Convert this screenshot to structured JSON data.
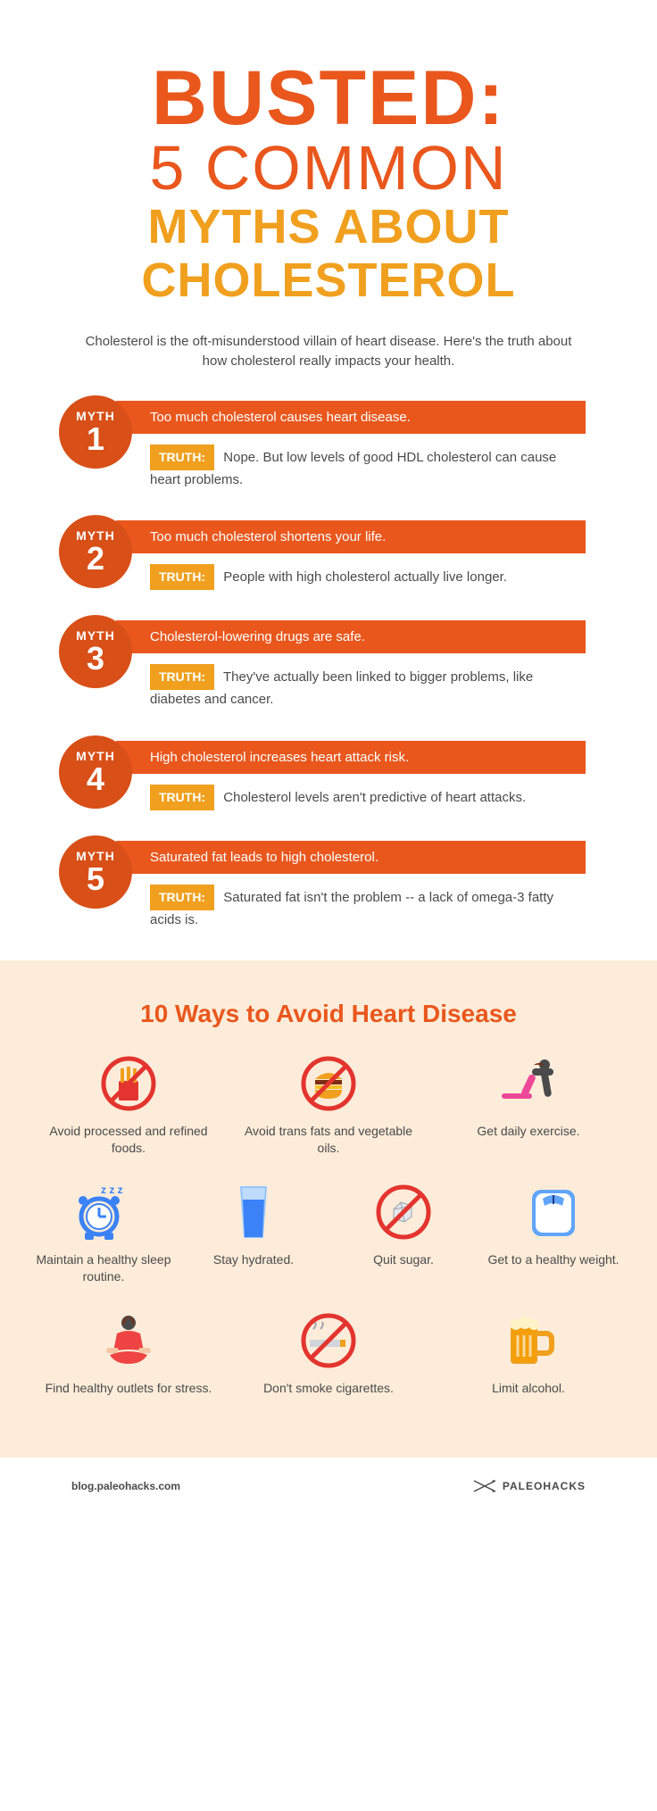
{
  "colors": {
    "orange": "#e9571d",
    "orangeDark": "#d84f18",
    "amber": "#f0a01e",
    "cream": "#fdecd9",
    "text": "#4a4a4a",
    "bg": "#ffffff"
  },
  "header": {
    "line1": "BUSTED:",
    "line2": "5 COMMON",
    "line3_a": "MYTHS ABOUT",
    "line3_b": "CHOLESTEROL"
  },
  "intro": "Cholesterol is the oft-misunderstood villain of heart disease. Here's the truth about how cholesterol really impacts your health.",
  "truth_label": "TRUTH:",
  "myth_word": "MYTH",
  "myths": [
    {
      "num": "1",
      "myth": "Too much cholesterol causes heart disease.",
      "truth": "Nope. But low levels of good HDL cholesterol can cause heart problems."
    },
    {
      "num": "2",
      "myth": "Too much cholesterol shortens your life.",
      "truth": "People with high cholesterol actually live longer."
    },
    {
      "num": "3",
      "myth": "Cholesterol-lowering drugs are safe.",
      "truth": "They've actually been linked to bigger problems, like diabetes and cancer."
    },
    {
      "num": "4",
      "myth": "High cholesterol increases heart attack risk.",
      "truth": "Cholesterol levels aren't predictive of heart attacks."
    },
    {
      "num": "5",
      "myth": "Saturated fat leads to high cholesterol.",
      "truth": "Saturated fat isn't the problem -- a lack of omega-3 fatty acids is."
    }
  ],
  "ways": {
    "title": "10 Ways to Avoid Heart Disease",
    "grid_cols": 3,
    "items": [
      {
        "icon": "no-fries",
        "label": "Avoid processed and refined foods."
      },
      {
        "icon": "no-burger",
        "label": "Avoid trans fats and vegetable oils."
      },
      {
        "icon": "exercise",
        "label": "Get daily exercise."
      },
      {
        "icon": "sleep",
        "label": "Maintain a healthy sleep routine."
      },
      {
        "icon": "water",
        "label": "Stay hydrated."
      },
      {
        "icon": "no-sugar",
        "label": "Quit sugar."
      },
      {
        "icon": "scale",
        "label": "Get to a healthy weight."
      },
      {
        "icon": "meditate",
        "label": "Find healthy outlets for stress."
      },
      {
        "icon": "no-smoke",
        "label": "Don't smoke cigarettes."
      },
      {
        "icon": "beer",
        "label": "Limit alcohol."
      }
    ],
    "row_layout": [
      3,
      4,
      3
    ]
  },
  "footer": {
    "url": "blog.paleohacks.com",
    "brand": "PALEOHACKS"
  }
}
